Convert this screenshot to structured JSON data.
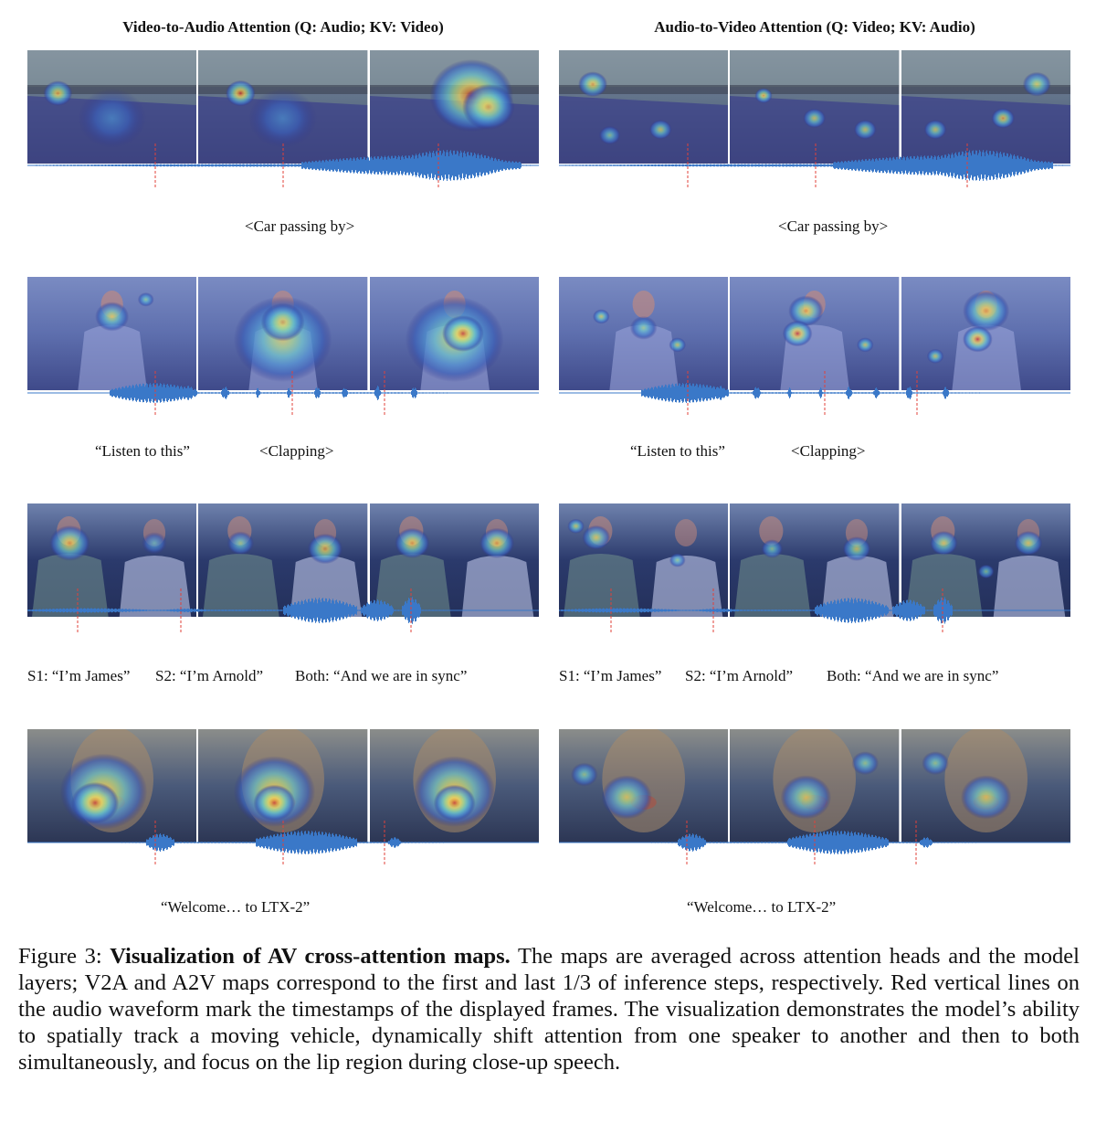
{
  "columns": [
    {
      "title": "Video-to-Audio Attention (Q: Audio; KV: Video)"
    },
    {
      "title": "Audio-to-Video Attention (Q: Video; KV: Audio)"
    }
  ],
  "rows": [
    {
      "scene": "street-car",
      "labels": [
        "<Car passing by>"
      ]
    },
    {
      "scene": "single-speaker-clapping",
      "labels": [
        "“Listen to this”",
        "<Clapping>"
      ]
    },
    {
      "scene": "two-speakers",
      "labels": [
        "S1: “I’m James”",
        "S2: “I’m Arnold”",
        "Both: “And we are in sync”"
      ]
    },
    {
      "scene": "close-up-speaker",
      "labels": [
        "“Welcome… to LTX-2”"
      ]
    }
  ],
  "caption": {
    "prefix": "Figure 3: ",
    "title": "Visualization of AV cross-attention maps.",
    "body": " The maps are averaged across attention heads and the model layers; V2A and A2V maps correspond to the first and last 1/3 of inference steps, respectively. Red vertical lines on the audio waveform mark the timestamps of the displayed frames. The visualization demonstrates the model’s ability to spatially track a moving vehicle, dynamically shift attention from one speaker to another and then to both simultaneously, and focus on the lip region during close-up speech."
  },
  "colors": {
    "waveform": "#3a78c8",
    "marker": "#e0413a",
    "heat_low": "#2c2f8a",
    "heat_high": "#d7262a"
  }
}
